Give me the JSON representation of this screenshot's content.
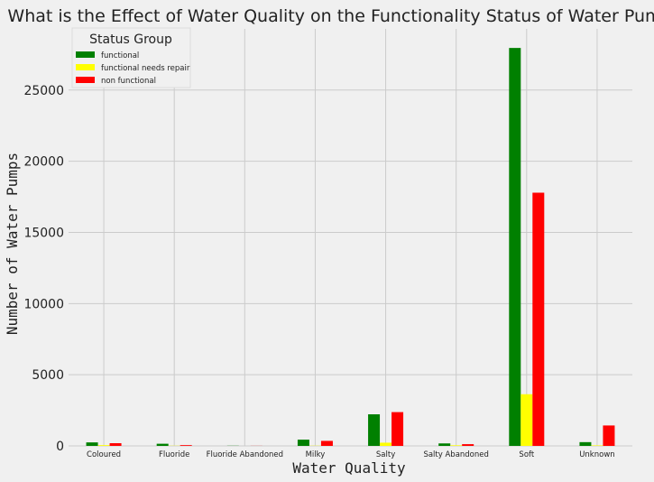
{
  "chart_data": {
    "type": "bar",
    "title": "What is the Effect of Water Quality on the Functionality Status of Water Pumps?",
    "xlabel": "Water Quality",
    "ylabel": "Number of Water Pumps",
    "categories": [
      "Coloured",
      "Fluoride",
      "Fluoride Abandoned",
      "Milky",
      "Salty",
      "Salty Abandoned",
      "Soft",
      "Unknown"
    ],
    "series": [
      {
        "name": "functional",
        "color": "#008000",
        "values": [
          246,
          151,
          11,
          438,
          2220,
          174,
          27960,
          264
        ]
      },
      {
        "name": "functional needs repair",
        "color": "#ffff00",
        "values": [
          54,
          13,
          0,
          14,
          225,
          43,
          3630,
          35
        ]
      },
      {
        "name": "non functional",
        "color": "#ff0000",
        "values": [
          190,
          53,
          6,
          352,
          2374,
          122,
          17790,
          1434
        ]
      }
    ],
    "ylim": [
      0,
      29300
    ],
    "yticks": [
      0,
      5000,
      10000,
      15000,
      20000,
      25000
    ],
    "grid": true,
    "legend": {
      "title": "Status Group",
      "placement": "top-left"
    }
  }
}
